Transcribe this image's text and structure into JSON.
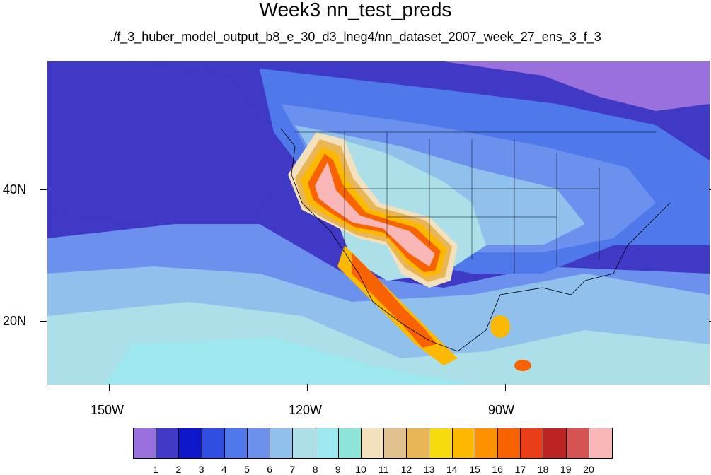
{
  "title": "Week3 nn_test_preds",
  "subtitle": "./f_3_huber_model_output_b8_e_30_d3_lneg4/nn_dataset_2007_week_27_ens_3_f_3",
  "lat_labels": [
    "40N",
    "20N"
  ],
  "lon_labels": [
    "150W",
    "120W",
    "90W"
  ],
  "colorbar": {
    "labels": [
      "1",
      "2",
      "3",
      "4",
      "5",
      "6",
      "7",
      "8",
      "9",
      "10",
      "11",
      "12",
      "13",
      "14",
      "15",
      "16",
      "17",
      "18",
      "19",
      "20"
    ],
    "colors": [
      "#9a70dc",
      "#3f39c6",
      "#0e16c9",
      "#2f4ee0",
      "#4f78ea",
      "#6b90ee",
      "#8fc1ec",
      "#acdfe8",
      "#9ce8ee",
      "#8fe4da",
      "#f3e0bd",
      "#e1c18f",
      "#e8b657",
      "#f6dc0f",
      "#fdb900",
      "#fb9000",
      "#f86200",
      "#ea3e18",
      "#bb2222",
      "#d65353",
      "#f9b7b7"
    ]
  }
}
